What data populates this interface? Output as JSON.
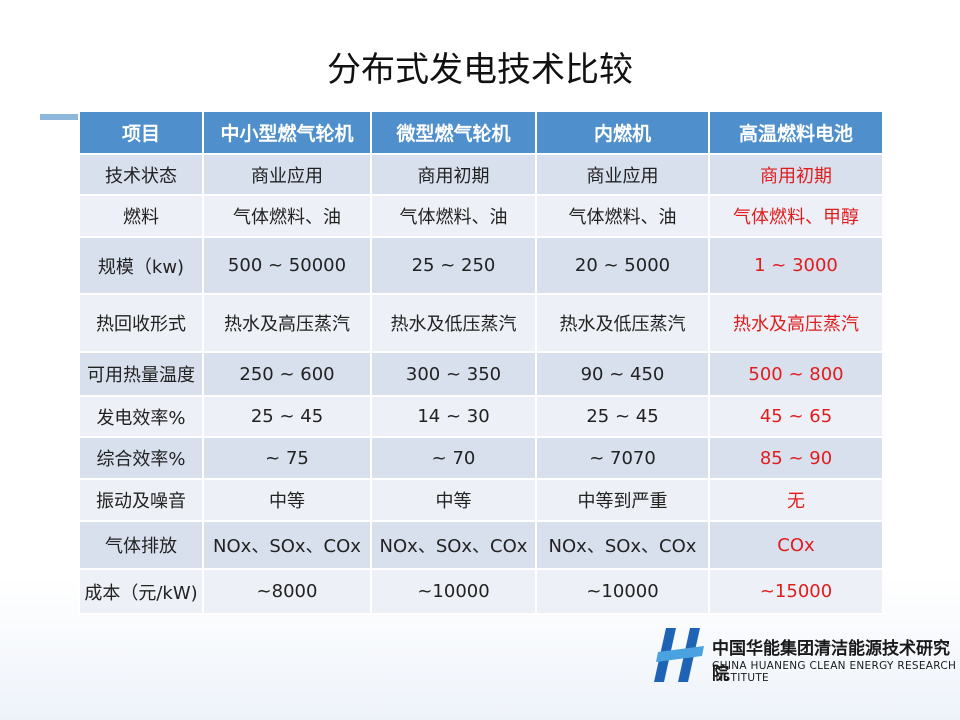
{
  "header": {
    "title": "分布式发电技术比较"
  },
  "table": {
    "header": [
      "项目",
      "中小型燃气轮机",
      "微型燃气轮机",
      "内燃机",
      "高温燃料电池"
    ],
    "rows": [
      [
        "技术状态",
        "商业应用",
        "商用初期",
        "商业应用",
        "商用初期"
      ],
      [
        "燃料",
        "气体燃料、油",
        "气体燃料、油",
        "气体燃料、油",
        "气体燃料、甲醇"
      ],
      [
        "规模（kw)",
        "500 ~ 50000",
        "25 ~ 250",
        "20 ~ 5000",
        "1 ~ 3000"
      ],
      [
        "热回收形式",
        "热水及高压蒸汽",
        "热水及低压蒸汽",
        "热水及低压蒸汽",
        "热水及高压蒸汽"
      ],
      [
        "可用热量温度",
        "250 ~ 600",
        "300 ~ 350",
        "90 ~ 450",
        "500 ~ 800"
      ],
      [
        "发电效率%",
        "25 ~ 45",
        "14 ~ 30",
        "25 ~ 45",
        "45 ~ 65"
      ],
      [
        "综合效率%",
        "~ 75",
        "~ 70",
        "~ 7070",
        "85 ~ 90"
      ],
      [
        "振动及噪音",
        "中等",
        "中等",
        "中等到严重",
        "无"
      ],
      [
        "气体排放",
        "NOx、SOx、COx",
        "NOx、SOx、COx",
        "NOx、SOx、COx",
        "COx"
      ],
      [
        "成本（元/kW)",
        "~8000",
        "~10000",
        "~10000",
        "~15000"
      ]
    ]
  },
  "logo": {
    "name_cn": "中国华能集团清洁能源技术研究院",
    "name_en": "CHINA HUANENG CLEAN ENERGY RESEARCH INSTITUTE"
  }
}
